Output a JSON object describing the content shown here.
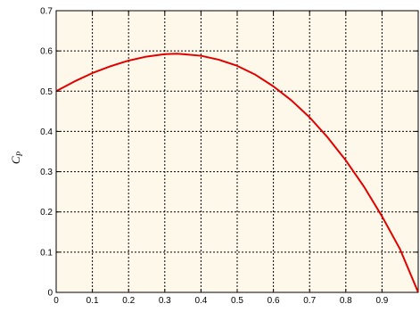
{
  "chart_data": {
    "type": "line",
    "title": "",
    "xlabel": "",
    "ylabel": "C",
    "ylabel_subscript": "P",
    "xlim": [
      0,
      1
    ],
    "ylim": [
      0,
      0.7
    ],
    "x_ticks": [
      0,
      0.1,
      0.2,
      0.3,
      0.4,
      0.5,
      0.6,
      0.7,
      0.8,
      0.9
    ],
    "x_tick_labels": [
      "0",
      "0.1",
      "0.2",
      "0.3",
      "0.4",
      "0.5",
      "0.6",
      "0.7",
      "0.8",
      "0.9"
    ],
    "y_ticks": [
      0,
      0.1,
      0.2,
      0.3,
      0.4,
      0.5,
      0.6,
      0.7
    ],
    "y_tick_labels": [
      "0",
      "0.1",
      "0.2",
      "0.3",
      "0.4",
      "0.5",
      "0.6",
      "0.7"
    ],
    "grid": true,
    "legend": "none",
    "series": [
      {
        "color": "#e00000",
        "x": [
          0,
          0.05,
          0.1,
          0.15,
          0.2,
          0.25,
          0.3,
          0.333,
          0.35,
          0.4,
          0.45,
          0.5,
          0.55,
          0.6,
          0.65,
          0.7,
          0.75,
          0.8,
          0.85,
          0.9,
          0.95,
          1.0
        ],
        "y": [
          0.5,
          0.524,
          0.545,
          0.562,
          0.576,
          0.586,
          0.592,
          0.593,
          0.592,
          0.588,
          0.578,
          0.563,
          0.541,
          0.512,
          0.477,
          0.435,
          0.385,
          0.328,
          0.263,
          0.189,
          0.107,
          0.0
        ]
      }
    ],
    "colors": {
      "plot_background": "#fdf8e9",
      "grid": "#000000",
      "axis": "#000000"
    }
  }
}
